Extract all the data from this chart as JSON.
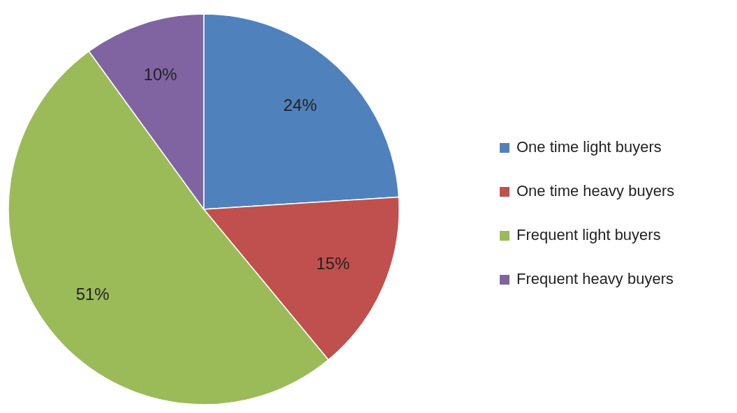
{
  "chart_data": {
    "type": "pie",
    "categories": [
      "One time light buyers",
      "One time heavy buyers",
      "Frequent light buyers",
      "Frequent heavy buyers"
    ],
    "values": [
      24,
      15,
      51,
      10
    ],
    "colors": [
      "#4f81bd",
      "#c0504d",
      "#9bbb59",
      "#8064a2"
    ],
    "value_labels": [
      "24%",
      "15%",
      "51%",
      "10%"
    ],
    "legend": "right"
  }
}
